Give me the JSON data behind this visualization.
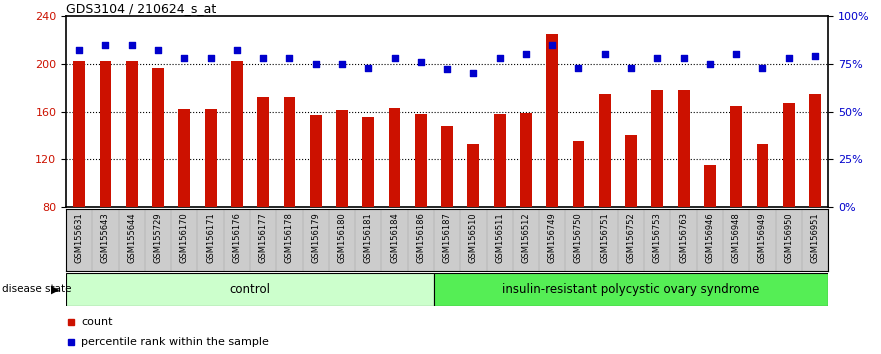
{
  "title": "GDS3104 / 210624_s_at",
  "samples": [
    "GSM155631",
    "GSM155643",
    "GSM155644",
    "GSM155729",
    "GSM156170",
    "GSM156171",
    "GSM156176",
    "GSM156177",
    "GSM156178",
    "GSM156179",
    "GSM156180",
    "GSM156181",
    "GSM156184",
    "GSM156186",
    "GSM156187",
    "GSM156510",
    "GSM156511",
    "GSM156512",
    "GSM156749",
    "GSM156750",
    "GSM156751",
    "GSM156752",
    "GSM156753",
    "GSM156763",
    "GSM156946",
    "GSM156948",
    "GSM156949",
    "GSM156950",
    "GSM156951"
  ],
  "counts": [
    202,
    202,
    202,
    196,
    162,
    162,
    202,
    172,
    172,
    157,
    161,
    155,
    163,
    158,
    148,
    133,
    158,
    159,
    225,
    135,
    175,
    140,
    178,
    178,
    115,
    165,
    133,
    167,
    175
  ],
  "percentile_ranks": [
    82,
    85,
    85,
    82,
    78,
    78,
    82,
    78,
    78,
    75,
    75,
    73,
    78,
    76,
    72,
    70,
    78,
    80,
    85,
    73,
    80,
    73,
    78,
    78,
    75,
    80,
    73,
    78,
    79
  ],
  "control_count": 14,
  "disease_count": 15,
  "control_label": "control",
  "disease_label": "insulin-resistant polycystic ovary syndrome",
  "ylim_left": [
    80,
    240
  ],
  "ylim_right": [
    0,
    100
  ],
  "yticks_left": [
    80,
    120,
    160,
    200,
    240
  ],
  "yticks_right": [
    0,
    25,
    50,
    75,
    100
  ],
  "bar_color": "#cc1100",
  "dot_color": "#0000cc",
  "control_bg": "#ccffcc",
  "disease_bg": "#55ee55",
  "label_bg": "#cccccc",
  "grid_color": "#333333",
  "dotted_lines": [
    120,
    160,
    200
  ]
}
